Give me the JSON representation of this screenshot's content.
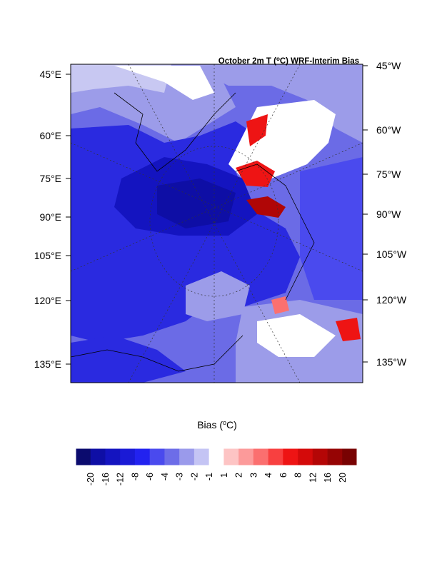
{
  "map": {
    "title_main": "October 2m T (",
    "title_sup": "o",
    "title_rest": "C) WRF-Interim Bias",
    "left_lon_labels": [
      "45°E",
      "60°E",
      "75°E",
      "90°E",
      "105°E",
      "120°E",
      "135°E"
    ],
    "right_lon_labels": [
      "45°W",
      "60°W",
      "75°W",
      "90°W",
      "105°W",
      "120°W",
      "135°W"
    ]
  },
  "colorbar": {
    "label_main": "Bias (",
    "label_sup": "o",
    "label_rest": "C)",
    "tick_labels": [
      "-20",
      "-16",
      "-12",
      "-8",
      "-6",
      "-4",
      "-3",
      "-2",
      "-1",
      "1",
      "2",
      "3",
      "4",
      "6",
      "8",
      "12",
      "16",
      "20"
    ],
    "colors": [
      "#0b0b6e",
      "#0e0ea5",
      "#1414c0",
      "#1a1ad6",
      "#2222f0",
      "#4a4aee",
      "#6d6de8",
      "#9a9aeb",
      "#c4c4f4",
      "#ffffff",
      "#fdc4c4",
      "#fc9a9a",
      "#fb6f6f",
      "#f84040",
      "#ee1414",
      "#d40a0a",
      "#b40606",
      "#960404",
      "#780202"
    ]
  },
  "palette": {
    "ocean_deep": "#1010b0",
    "ocean_main": "#2a2ae0",
    "mid": "#6b6be6",
    "light": "#9c9ce9",
    "pale": "#c8c8f2",
    "warm1": "#fb7070",
    "warm2": "#ee1414",
    "warm3": "#b00606"
  }
}
